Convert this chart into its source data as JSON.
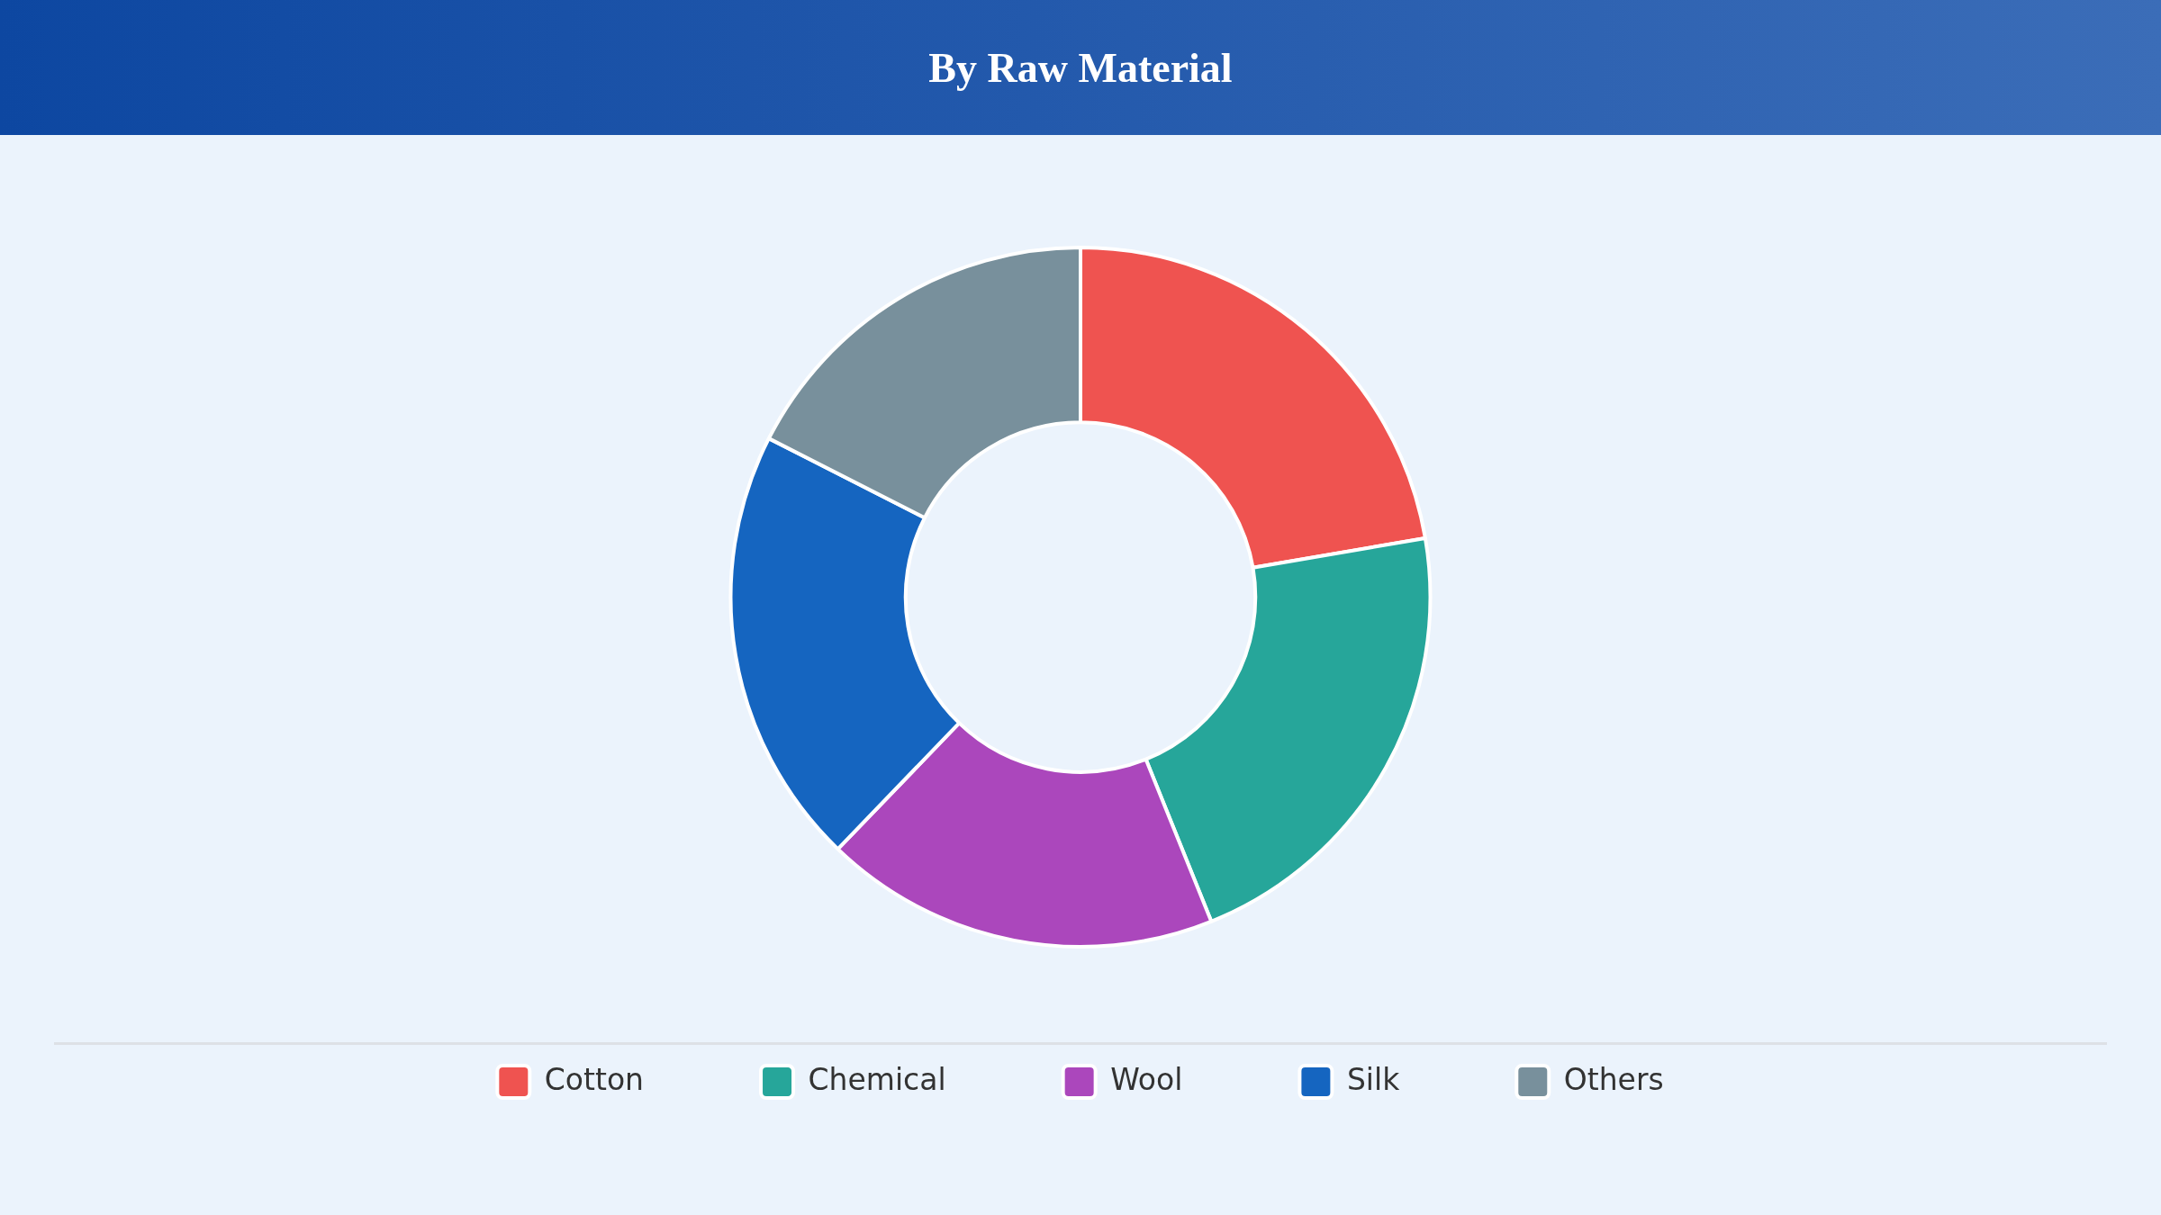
{
  "chart_data": {
    "type": "donut",
    "title": "By Raw Material",
    "categories": [
      "Cotton",
      "Chemical",
      "Wool",
      "Silk",
      "Others"
    ],
    "values": [
      22.3,
      21.6,
      18.3,
      20.3,
      17.5
    ],
    "colors": [
      "#ef5350",
      "#26a69a",
      "#ab47bc",
      "#1565c0",
      "#78909c"
    ],
    "legend": "bottom"
  }
}
